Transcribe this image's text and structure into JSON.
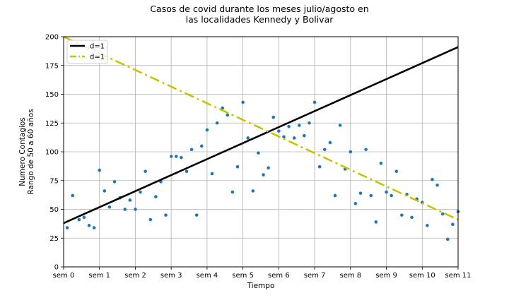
{
  "chart_data": {
    "type": "scatter",
    "title_lines": [
      "Casos de covid durante los meses julio/agosto en",
      "las localidades Kennedy y Bolivar"
    ],
    "xlabel": "Tiempo",
    "ylabel_lines": [
      "Numero Contagios",
      "Rango de 50 a 60 años"
    ],
    "xlim": [
      0,
      11
    ],
    "ylim": [
      0,
      200
    ],
    "x_ticks": [
      {
        "value": 0,
        "label": "sem 0"
      },
      {
        "value": 1,
        "label": "sem 1"
      },
      {
        "value": 2,
        "label": "sem 2"
      },
      {
        "value": 3,
        "label": "sem 3"
      },
      {
        "value": 4,
        "label": "sem 4"
      },
      {
        "value": 5,
        "label": "sem 5"
      },
      {
        "value": 6,
        "label": "sem 6"
      },
      {
        "value": 7,
        "label": "sem 7"
      },
      {
        "value": 8,
        "label": "sem 8"
      },
      {
        "value": 9,
        "label": "sem 9"
      },
      {
        "value": 10,
        "label": "sem 10"
      },
      {
        "value": 11,
        "label": "sem 11"
      }
    ],
    "y_ticks": [
      0,
      25,
      50,
      75,
      100,
      125,
      150,
      175,
      200
    ],
    "grid": true,
    "legend_position": "top-left",
    "points": {
      "color": "#1f77b4",
      "x": [
        0.1,
        0.25,
        0.43,
        0.57,
        0.71,
        0.85,
        1.0,
        1.14,
        1.28,
        1.42,
        1.57,
        1.71,
        1.85,
        2.0,
        2.14,
        2.28,
        2.42,
        2.57,
        2.71,
        2.85,
        3.0,
        3.14,
        3.28,
        3.43,
        3.57,
        3.71,
        3.85,
        4.0,
        4.14,
        4.28,
        4.43,
        4.57,
        4.71,
        4.85,
        5.0,
        5.14,
        5.28,
        5.43,
        5.57,
        5.71,
        5.85,
        6.0,
        6.14,
        6.28,
        6.43,
        6.57,
        6.71,
        6.85,
        7.0,
        7.14,
        7.28,
        7.43,
        7.57,
        7.71,
        7.85,
        8.0,
        8.14,
        8.28,
        8.43,
        8.57,
        8.71,
        8.85,
        9.0,
        9.14,
        9.28,
        9.43,
        9.57,
        9.71,
        9.85,
        10.0,
        10.14,
        10.28,
        10.42,
        10.57,
        10.71,
        10.85,
        11.0
      ],
      "y": [
        34,
        62,
        41,
        43,
        36,
        34,
        84,
        66,
        52,
        74,
        60,
        50,
        58,
        50,
        65,
        83,
        41,
        61,
        74,
        45,
        96,
        96,
        95,
        83,
        102,
        45,
        105,
        119,
        81,
        125,
        138,
        132,
        65,
        87,
        143,
        112,
        66,
        99,
        80,
        86,
        130,
        118,
        113,
        122,
        112,
        123,
        114,
        125,
        143,
        87,
        102,
        108,
        62,
        123,
        85,
        100,
        55,
        64,
        102,
        62,
        39,
        90,
        65,
        62,
        83,
        45,
        63,
        43,
        59,
        56,
        36,
        76,
        71,
        46,
        24,
        37,
        48
      ]
    },
    "series": [
      {
        "name": "d=1",
        "color": "#000000",
        "style": "solid",
        "x": [
          0,
          11
        ],
        "y": [
          38,
          191
        ]
      },
      {
        "name": "d=1",
        "color": "#c8c300",
        "style": "dashdot",
        "x": [
          0,
          11
        ],
        "y": [
          200,
          41
        ]
      }
    ]
  }
}
